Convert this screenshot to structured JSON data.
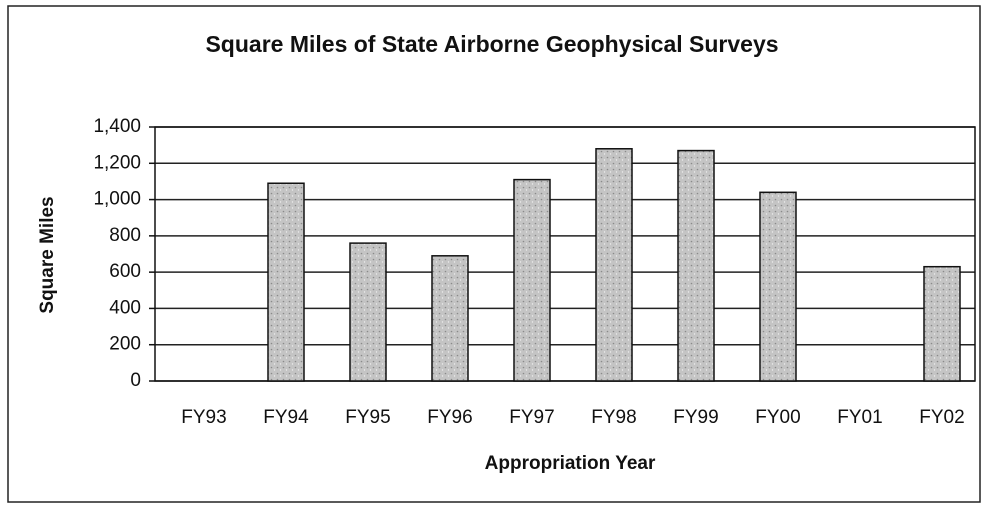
{
  "chart_data": {
    "type": "bar",
    "title": "Square Miles of State Airborne Geophysical Surveys",
    "x_label": "Appropriation Year",
    "y_label": "Square Miles",
    "categories": [
      "FY93",
      "FY94",
      "FY95",
      "FY96",
      "FY97",
      "FY98",
      "FY99",
      "FY00",
      "FY01",
      "FY02"
    ],
    "values": [
      0,
      1090,
      760,
      690,
      1110,
      1280,
      1270,
      1040,
      0,
      630
    ],
    "color": "#c4c4c4",
    "ylim": [
      0,
      1400
    ],
    "yticks": [
      0,
      200,
      400,
      600,
      800,
      {
        "value": 1000,
        "label": "1,000"
      },
      {
        "value": 1200,
        "label": "1,200"
      },
      {
        "value": 1400,
        "label": "1,400"
      }
    ],
    "grid": true
  }
}
